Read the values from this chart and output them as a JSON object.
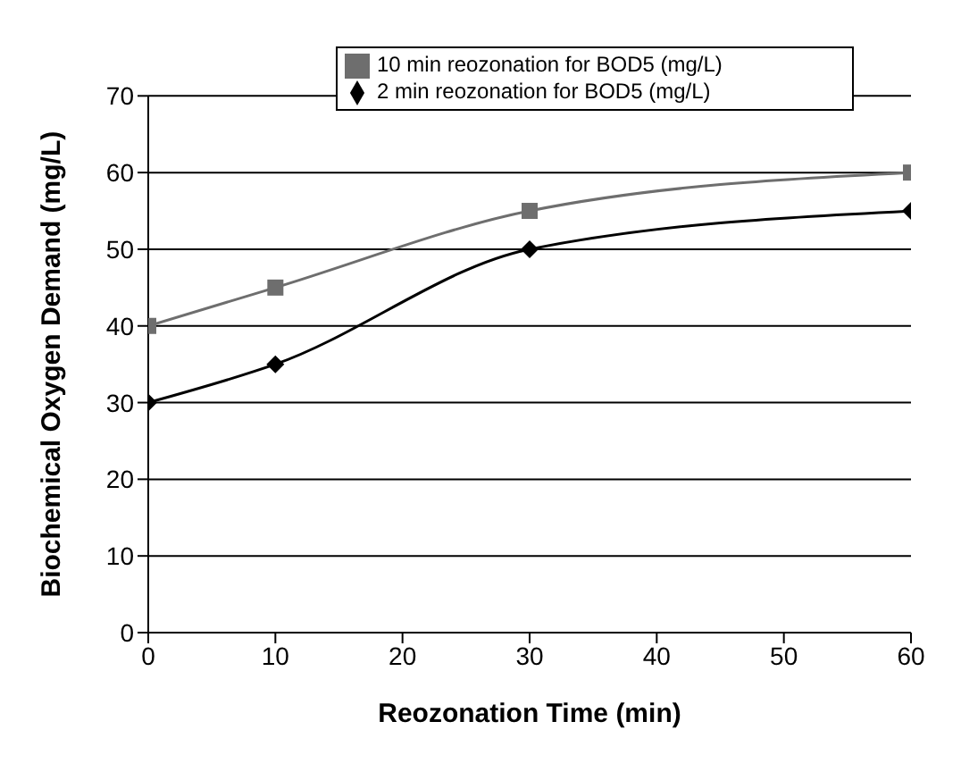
{
  "chart_data": {
    "type": "line",
    "xlabel": "Reozonation Time (min)",
    "ylabel": "Biochemical Oxygen Demand (mg/L)",
    "x": [
      0,
      10,
      30,
      60
    ],
    "series": [
      {
        "name": "2 min reozonation for BOD5 (mg/L)",
        "color": "#000000",
        "marker": "diamond",
        "values": [
          30,
          35,
          50,
          55
        ]
      },
      {
        "name": "10 min reozonation for BOD5 (mg/L)",
        "color": "#6e6e6e",
        "marker": "square",
        "values": [
          40,
          45,
          55,
          60
        ]
      }
    ],
    "xlim": [
      0,
      60
    ],
    "xticks": [
      0,
      10,
      20,
      30,
      40,
      50,
      60
    ],
    "ylim": [
      0,
      70
    ],
    "yticks": [
      0,
      10,
      20,
      30,
      40,
      50,
      60,
      70
    ],
    "grid": "y",
    "legend": "top"
  }
}
